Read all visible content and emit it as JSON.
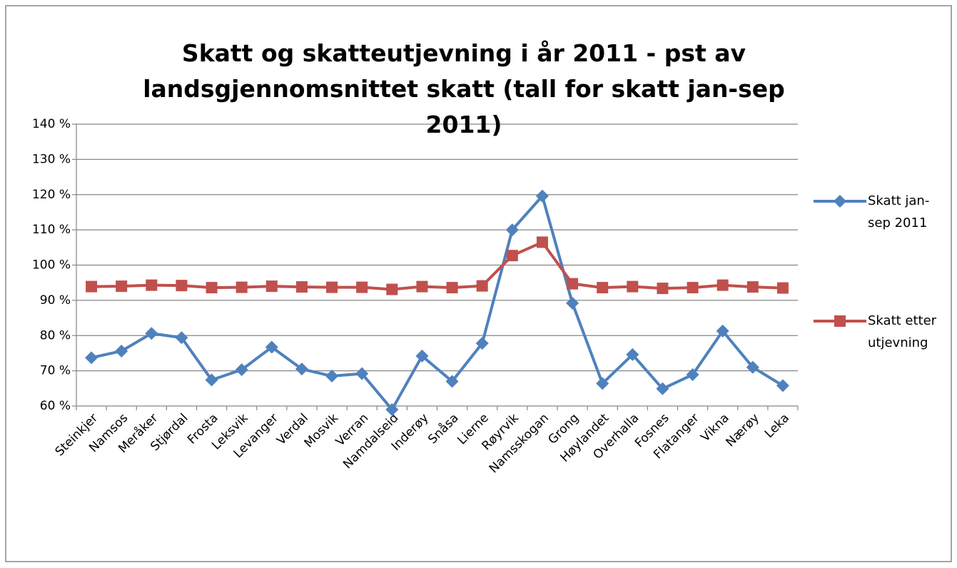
{
  "chart_data": {
    "type": "line",
    "title": "Skatt og skatteutjevning i år 2011 - pst av landsgjennomsnittet skatt (tall for skatt jan-sep 2011)",
    "categories": [
      "Steinkjer",
      "Namsos",
      "Meråker",
      "Stjørdal",
      "Frosta",
      "Leksvik",
      "Levanger",
      "Verdal",
      "Mosvik",
      "Verran",
      "Namdalseid",
      "Inderøy",
      "Snåsa",
      "Lierne",
      "Røyrvik",
      "Namsskogan",
      "Grong",
      "Høylandet",
      "Overhalla",
      "Fosnes",
      "Flatanger",
      "Vikna",
      "Nærøy",
      "Leka"
    ],
    "series": [
      {
        "name": "Skatt jan-sep 2011",
        "color": "#4f81bd",
        "marker": "diamond",
        "values": [
          73.7,
          75.6,
          80.6,
          79.4,
          67.4,
          70.3,
          76.7,
          70.5,
          68.5,
          69.2,
          59.0,
          74.2,
          67.0,
          77.8,
          110.0,
          119.6,
          89.2,
          66.4,
          74.6,
          64.9,
          68.9,
          81.3,
          71.0,
          65.8
        ]
      },
      {
        "name": "Skatt etter utjevning",
        "color": "#c0504d",
        "marker": "square",
        "values": [
          93.9,
          94.0,
          94.3,
          94.2,
          93.6,
          93.7,
          94.0,
          93.8,
          93.7,
          93.7,
          93.1,
          93.9,
          93.6,
          94.1,
          102.7,
          106.5,
          94.7,
          93.6,
          93.9,
          93.4,
          93.6,
          94.3,
          93.8,
          93.5
        ]
      }
    ],
    "ylim": [
      60,
      140
    ],
    "yticks": [
      {
        "value": 60,
        "label": "60 %"
      },
      {
        "value": 70,
        "label": "70 %"
      },
      {
        "value": 80,
        "label": "80 %"
      },
      {
        "value": 90,
        "label": "90 %"
      },
      {
        "value": 100,
        "label": "100 %"
      },
      {
        "value": 110,
        "label": "110 %"
      },
      {
        "value": 120,
        "label": "120 %"
      },
      {
        "value": 130,
        "label": "130 %"
      },
      {
        "value": 140,
        "label": "140 %"
      }
    ],
    "grid": true,
    "legend": "right"
  }
}
